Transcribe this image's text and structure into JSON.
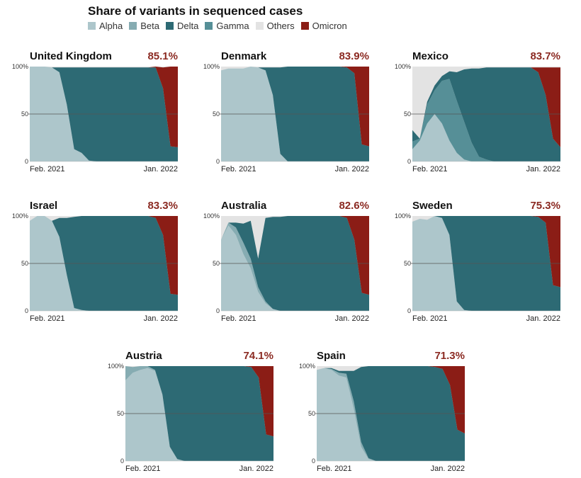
{
  "title": "Share of variants in sequenced cases",
  "legend": [
    {
      "name": "Alpha",
      "color": "#adc6cb"
    },
    {
      "name": "Beta",
      "color": "#86acb2"
    },
    {
      "name": "Delta",
      "color": "#2d6a74"
    },
    {
      "name": "Gamma",
      "color": "#568f97"
    },
    {
      "name": "Others",
      "color": "#e3e3e3"
    },
    {
      "name": "Omicron",
      "color": "#8b1d16"
    }
  ],
  "colors": {
    "highlight": "#8b2a22",
    "background": "#e3e3e3"
  },
  "chart_data": [
    {
      "type": "area",
      "title": "United Kingdom",
      "value_label": "85.1%",
      "x_ticks": [
        "Feb. 2021",
        "Jan. 2022"
      ],
      "y_ticks": [
        "100%",
        "50",
        "0"
      ],
      "ylim": [
        0,
        100
      ],
      "series": {
        "Alpha": [
          100,
          100,
          100,
          99,
          94,
          60,
          13,
          9,
          1,
          0,
          0,
          0,
          0,
          0,
          0,
          0,
          0,
          0,
          0,
          0,
          0
        ],
        "Beta": [
          0,
          0,
          0,
          0,
          0,
          0,
          0,
          0,
          0,
          0,
          0,
          0,
          0,
          0,
          0,
          0,
          0,
          0,
          0,
          0,
          0
        ],
        "Gamma": [
          0,
          0,
          0,
          0,
          0,
          0,
          0,
          0,
          0,
          0,
          0,
          0,
          0,
          0,
          0,
          0,
          0,
          0,
          0,
          0,
          0
        ],
        "Delta": [
          0,
          0,
          0,
          0,
          5,
          39,
          86,
          90,
          98,
          99,
          99,
          99,
          99,
          99,
          99,
          99,
          99,
          99,
          77,
          16,
          15
        ],
        "Omicron": [
          0,
          0,
          0,
          0,
          0,
          0,
          0,
          0,
          0,
          0,
          0,
          0,
          0,
          0,
          0,
          0,
          0,
          1,
          22,
          84,
          85
        ]
      }
    },
    {
      "type": "area",
      "title": "Denmark",
      "value_label": "83.9%",
      "x_ticks": [
        "Feb. 2021",
        "Jan. 2022"
      ],
      "y_ticks": [
        "100%",
        "50",
        "0"
      ],
      "ylim": [
        0,
        100
      ],
      "series": {
        "Alpha": [
          96,
          98,
          98,
          98,
          100,
          99,
          96,
          70,
          8,
          0,
          0,
          0,
          0,
          0,
          0,
          0,
          0,
          0,
          0,
          0,
          0
        ],
        "Beta": [
          0,
          0,
          0,
          0,
          0,
          0,
          0,
          0,
          0,
          0,
          0,
          0,
          0,
          0,
          0,
          0,
          0,
          0,
          0,
          0,
          0
        ],
        "Gamma": [
          0,
          0,
          0,
          0,
          0,
          0,
          0,
          0,
          0,
          0,
          0,
          0,
          0,
          0,
          0,
          0,
          0,
          0,
          0,
          0,
          0
        ],
        "Delta": [
          0,
          0,
          0,
          0,
          0,
          0,
          3,
          29,
          91,
          100,
          100,
          100,
          100,
          100,
          100,
          100,
          100,
          99,
          93,
          18,
          16
        ],
        "Omicron": [
          0,
          0,
          0,
          0,
          0,
          0,
          0,
          0,
          0,
          0,
          0,
          0,
          0,
          0,
          0,
          0,
          0,
          1,
          7,
          82,
          84
        ]
      }
    },
    {
      "type": "area",
      "title": "Mexico",
      "value_label": "83.7%",
      "x_ticks": [
        "Feb. 2021",
        "Jan. 2022"
      ],
      "y_ticks": [
        "100%",
        "50",
        "0"
      ],
      "ylim": [
        0,
        100
      ],
      "series": {
        "Alpha": [
          13,
          22,
          40,
          50,
          40,
          22,
          9,
          2,
          0,
          0,
          0,
          0,
          0,
          0,
          0,
          0,
          0,
          0,
          0,
          0,
          0
        ],
        "Beta": [
          0,
          0,
          0,
          0,
          0,
          0,
          0,
          0,
          0,
          0,
          0,
          0,
          0,
          0,
          0,
          0,
          0,
          0,
          0,
          0,
          0
        ],
        "Gamma": [
          8,
          2,
          20,
          25,
          45,
          65,
          55,
          40,
          20,
          5,
          2,
          0,
          0,
          0,
          0,
          0,
          0,
          0,
          0,
          0,
          0
        ],
        "Delta": [
          12,
          0,
          3,
          5,
          5,
          8,
          30,
          55,
          78,
          93,
          97,
          99,
          99,
          99,
          99,
          99,
          99,
          94,
          70,
          24,
          15
        ],
        "Omicron": [
          0,
          0,
          0,
          0,
          0,
          0,
          0,
          0,
          0,
          0,
          0,
          0,
          0,
          0,
          0,
          0,
          0,
          5,
          29,
          75,
          84
        ]
      }
    },
    {
      "type": "area",
      "title": "Israel",
      "value_label": "83.3%",
      "x_ticks": [
        "Feb. 2021",
        "Jan. 2022"
      ],
      "y_ticks": [
        "100%",
        "50",
        "0"
      ],
      "ylim": [
        0,
        100
      ],
      "series": {
        "Alpha": [
          95,
          100,
          100,
          95,
          78,
          38,
          3,
          1,
          0,
          0,
          0,
          0,
          0,
          0,
          0,
          0,
          0,
          0,
          0,
          0,
          0
        ],
        "Beta": [
          0,
          0,
          0,
          0,
          0,
          0,
          0,
          0,
          0,
          0,
          0,
          0,
          0,
          0,
          0,
          0,
          0,
          0,
          0,
          0,
          0
        ],
        "Gamma": [
          0,
          0,
          0,
          0,
          0,
          0,
          0,
          0,
          0,
          0,
          0,
          0,
          0,
          0,
          0,
          0,
          0,
          0,
          0,
          0,
          0
        ],
        "Delta": [
          0,
          0,
          0,
          0,
          20,
          60,
          96,
          99,
          100,
          100,
          100,
          100,
          100,
          100,
          100,
          100,
          100,
          98,
          80,
          18,
          17
        ],
        "Omicron": [
          0,
          0,
          0,
          0,
          0,
          0,
          0,
          0,
          0,
          0,
          0,
          0,
          0,
          0,
          0,
          0,
          0,
          2,
          20,
          82,
          83
        ]
      }
    },
    {
      "type": "area",
      "title": "Australia",
      "value_label": "82.6%",
      "x_ticks": [
        "Feb. 2021",
        "Jan. 2022"
      ],
      "y_ticks": [
        "100%",
        "50",
        "0"
      ],
      "ylim": [
        0,
        100
      ],
      "series": {
        "Alpha": [
          75,
          90,
          80,
          60,
          45,
          20,
          8,
          2,
          0,
          0,
          0,
          0,
          0,
          0,
          0,
          0,
          0,
          0,
          0,
          0,
          0
        ],
        "Beta": [
          0,
          3,
          8,
          12,
          10,
          5,
          2,
          0,
          0,
          0,
          0,
          0,
          0,
          0,
          0,
          0,
          0,
          0,
          0,
          0,
          0
        ],
        "Gamma": [
          0,
          0,
          0,
          0,
          0,
          0,
          0,
          0,
          0,
          0,
          0,
          0,
          0,
          0,
          0,
          0,
          0,
          0,
          0,
          0,
          0
        ],
        "Delta": [
          0,
          0,
          5,
          20,
          40,
          30,
          88,
          97,
          99,
          100,
          100,
          100,
          100,
          100,
          100,
          100,
          100,
          98,
          75,
          19,
          17
        ],
        "Omicron": [
          0,
          0,
          0,
          0,
          0,
          0,
          0,
          0,
          0,
          0,
          0,
          0,
          0,
          0,
          0,
          0,
          0,
          2,
          25,
          81,
          83
        ]
      }
    },
    {
      "type": "area",
      "title": "Sweden",
      "value_label": "75.3%",
      "x_ticks": [
        "Feb. 2021",
        "Jan. 2022"
      ],
      "y_ticks": [
        "100%",
        "50",
        "0"
      ],
      "ylim": [
        0,
        100
      ],
      "series": {
        "Alpha": [
          94,
          97,
          96,
          100,
          98,
          80,
          10,
          1,
          0,
          0,
          0,
          0,
          0,
          0,
          0,
          0,
          0,
          0,
          0,
          0,
          0
        ],
        "Beta": [
          0,
          0,
          0,
          0,
          0,
          0,
          0,
          0,
          0,
          0,
          0,
          0,
          0,
          0,
          0,
          0,
          0,
          0,
          0,
          0,
          0
        ],
        "Gamma": [
          0,
          0,
          0,
          0,
          0,
          0,
          0,
          0,
          0,
          0,
          0,
          0,
          0,
          0,
          0,
          0,
          0,
          0,
          0,
          0,
          0
        ],
        "Delta": [
          0,
          0,
          0,
          0,
          2,
          20,
          90,
          99,
          100,
          100,
          100,
          100,
          100,
          100,
          100,
          100,
          100,
          99,
          93,
          27,
          25
        ],
        "Omicron": [
          0,
          0,
          0,
          0,
          0,
          0,
          0,
          0,
          0,
          0,
          0,
          0,
          0,
          0,
          0,
          0,
          0,
          1,
          7,
          73,
          75
        ]
      }
    },
    {
      "type": "area",
      "title": "Austria",
      "value_label": "74.1%",
      "x_ticks": [
        "Feb. 2021",
        "Jan. 2022"
      ],
      "y_ticks": [
        "100%",
        "50",
        "0"
      ],
      "ylim": [
        0,
        100
      ],
      "series": {
        "Alpha": [
          85,
          93,
          96,
          98,
          95,
          70,
          15,
          2,
          0,
          0,
          0,
          0,
          0,
          0,
          0,
          0,
          0,
          0,
          0,
          0,
          0
        ],
        "Beta": [
          15,
          6,
          4,
          2,
          1,
          0,
          0,
          0,
          0,
          0,
          0,
          0,
          0,
          0,
          0,
          0,
          0,
          0,
          0,
          0,
          0
        ],
        "Gamma": [
          0,
          0,
          0,
          0,
          0,
          0,
          0,
          0,
          0,
          0,
          0,
          0,
          0,
          0,
          0,
          0,
          0,
          0,
          0,
          0,
          0
        ],
        "Delta": [
          0,
          0,
          0,
          0,
          4,
          30,
          85,
          98,
          100,
          100,
          100,
          100,
          100,
          100,
          100,
          100,
          100,
          99,
          88,
          28,
          26
        ],
        "Omicron": [
          0,
          0,
          0,
          0,
          0,
          0,
          0,
          0,
          0,
          0,
          0,
          0,
          0,
          0,
          0,
          0,
          0,
          1,
          12,
          72,
          74
        ]
      }
    },
    {
      "type": "area",
      "title": "Spain",
      "value_label": "71.3%",
      "x_ticks": [
        "Feb. 2021",
        "Jan. 2022"
      ],
      "y_ticks": [
        "100%",
        "50",
        "0"
      ],
      "ylim": [
        0,
        100
      ],
      "series": {
        "Alpha": [
          96,
          98,
          96,
          90,
          88,
          55,
          15,
          2,
          0,
          0,
          0,
          0,
          0,
          0,
          0,
          0,
          0,
          0,
          0,
          0,
          0
        ],
        "Beta": [
          0,
          0,
          1,
          3,
          4,
          8,
          5,
          1,
          0,
          0,
          0,
          0,
          0,
          0,
          0,
          0,
          0,
          0,
          0,
          0,
          0
        ],
        "Gamma": [
          0,
          0,
          0,
          0,
          0,
          0,
          0,
          0,
          0,
          0,
          0,
          0,
          0,
          0,
          0,
          0,
          0,
          0,
          0,
          0,
          0
        ],
        "Delta": [
          0,
          0,
          1,
          2,
          3,
          32,
          79,
          97,
          100,
          100,
          100,
          100,
          100,
          100,
          100,
          100,
          99,
          97,
          80,
          33,
          29
        ],
        "Omicron": [
          0,
          0,
          0,
          0,
          0,
          0,
          0,
          0,
          0,
          0,
          0,
          0,
          0,
          0,
          0,
          0,
          1,
          3,
          20,
          67,
          71
        ]
      }
    }
  ]
}
